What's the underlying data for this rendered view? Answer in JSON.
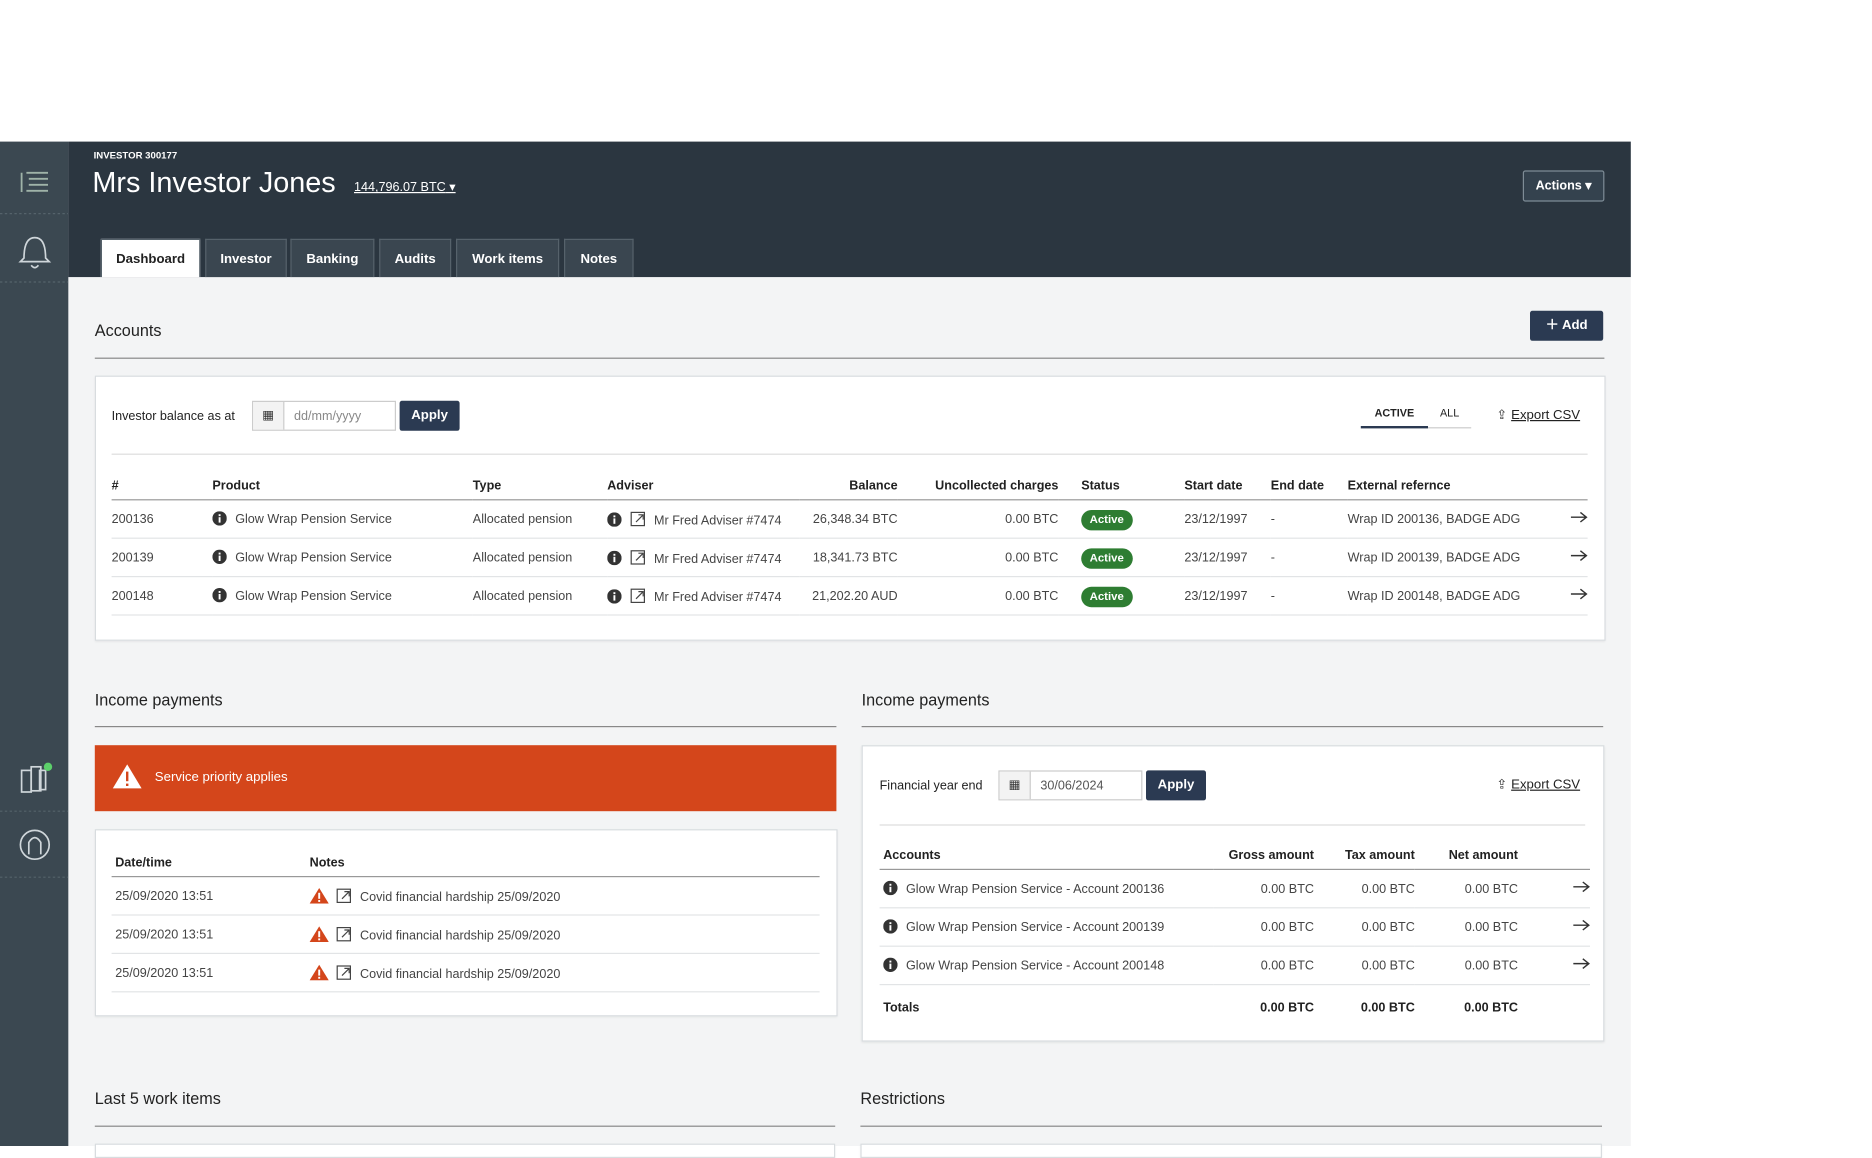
{
  "header": {
    "investor_id": "INVESTOR 300177",
    "name": "Mrs Investor Jones",
    "balance": "144,796.07 BTC",
    "actions": "Actions"
  },
  "tabs": [
    "Dashboard",
    "Investor",
    "Banking",
    "Audits",
    "Work items",
    "Notes"
  ],
  "accounts": {
    "title": "Accounts",
    "add": "Add",
    "balance_label": "Investor balance as at",
    "date_placeholder": "dd/mm/yyyy",
    "apply": "Apply",
    "filters": [
      "ACTIVE",
      "ALL"
    ],
    "export": "Export CSV",
    "columns": [
      "#",
      "Product",
      "Type",
      "Adviser",
      "Balance",
      "Uncollected charges",
      "Status",
      "Start date",
      "End date",
      "External refernce"
    ],
    "rows": [
      [
        "200136",
        "Glow Wrap Pension Service",
        "Allocated pension",
        "Mr Fred Adviser #7474",
        "26,348.34 BTC",
        "0.00 BTC",
        "Active",
        "23/12/1997",
        "-",
        "Wrap ID 200136, BADGE ADG"
      ],
      [
        "200139",
        "Glow Wrap Pension Service",
        "Allocated pension",
        "Mr Fred Adviser #7474",
        "18,341.73 BTC",
        "0.00 BTC",
        "Active",
        "23/12/1997",
        "-",
        "Wrap ID 200139, BADGE ADG"
      ],
      [
        "200148",
        "Glow Wrap Pension Service",
        "Allocated pension",
        "Mr Fred Adviser #7474",
        "21,202.20 AUD",
        "0.00 BTC",
        "Active",
        "23/12/1997",
        "-",
        "Wrap ID 200148, BADGE ADG"
      ]
    ]
  },
  "income_left": {
    "title": "Income payments",
    "alert": "Service priority applies",
    "columns": [
      "Date/time",
      "Notes"
    ],
    "rows": [
      [
        "25/09/2020 13:51",
        "Covid financial hardship 25/09/2020"
      ],
      [
        "25/09/2020 13:51",
        "Covid financial hardship 25/09/2020"
      ],
      [
        "25/09/2020 13:51",
        "Covid financial hardship 25/09/2020"
      ]
    ]
  },
  "income_right": {
    "title": "Income payments",
    "label": "Financial year end",
    "date": "30/06/2024",
    "apply": "Apply",
    "export": "Export CSV",
    "columns": [
      "Accounts",
      "Gross amount",
      "Tax amount",
      "Net amount"
    ],
    "rows": [
      [
        "Glow Wrap Pension Service - Account 200136",
        "0.00 BTC",
        "0.00 BTC",
        "0.00 BTC"
      ],
      [
        "Glow Wrap Pension Service - Account 200139",
        "0.00 BTC",
        "0.00 BTC",
        "0.00 BTC"
      ],
      [
        "Glow Wrap Pension Service - Account 200148",
        "0.00 BTC",
        "0.00 BTC",
        "0.00 BTC"
      ]
    ],
    "totals": [
      "Totals",
      "0.00 BTC",
      "0.00 BTC",
      "0.00 BTC"
    ]
  },
  "work_items": {
    "title": "Last 5 work items"
  },
  "restrictions": {
    "title": "Restrictions"
  }
}
